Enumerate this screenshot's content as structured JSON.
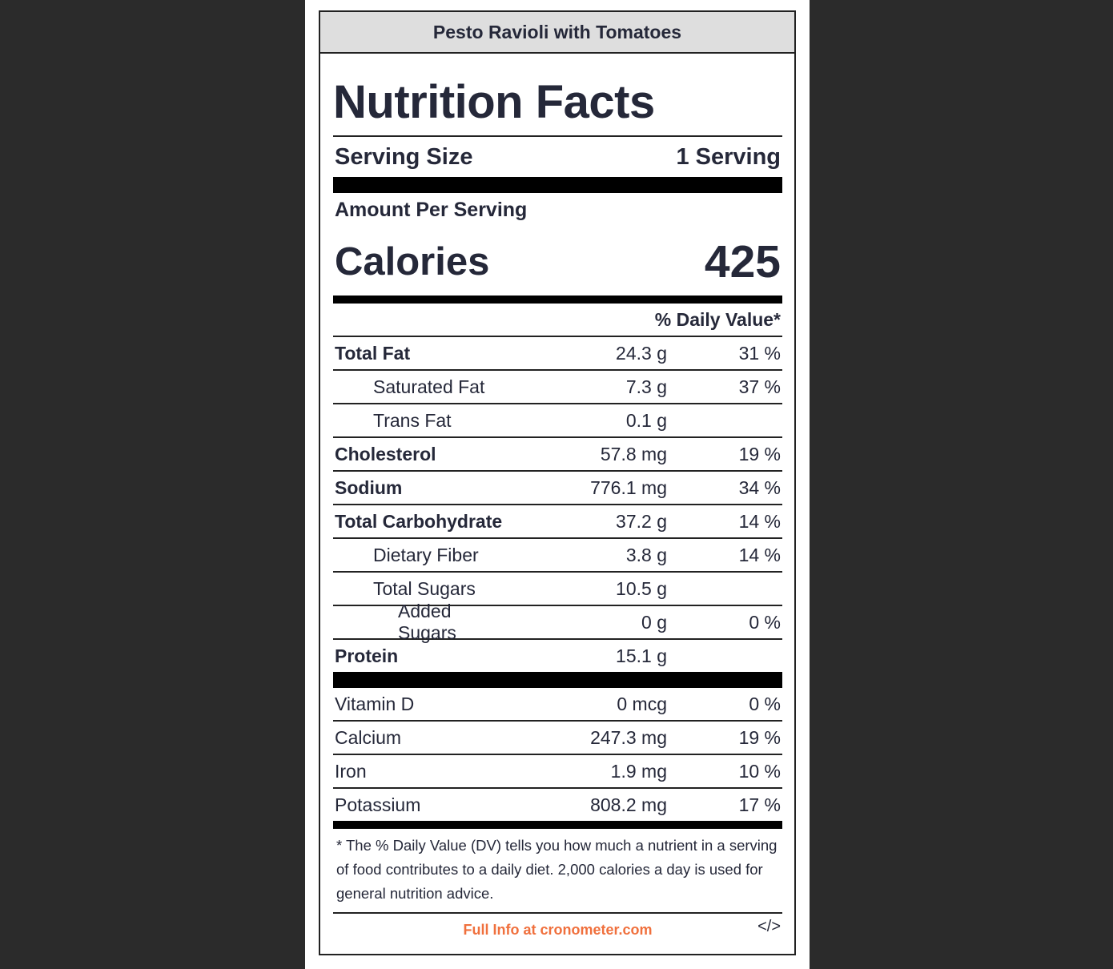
{
  "recipe_title": "Pesto Ravioli with Tomatoes",
  "heading": "Nutrition Facts",
  "serving": {
    "label": "Serving Size",
    "value": "1 Serving"
  },
  "amount_per_serving": "Amount Per Serving",
  "calories": {
    "label": "Calories",
    "value": "425"
  },
  "daily_value_header": "% Daily Value*",
  "nutrients": [
    {
      "name": "Total Fat",
      "amount": "24.3 g",
      "dv": "31 %"
    },
    {
      "name": "Saturated Fat",
      "amount": "7.3 g",
      "dv": "37 %"
    },
    {
      "name": "Trans Fat",
      "amount": "0.1 g",
      "dv": ""
    },
    {
      "name": "Cholesterol",
      "amount": "57.8 mg",
      "dv": "19 %"
    },
    {
      "name": "Sodium",
      "amount": "776.1 mg",
      "dv": "34 %"
    },
    {
      "name": "Total Carbohydrate",
      "amount": "37.2 g",
      "dv": "14 %"
    },
    {
      "name": "Dietary Fiber",
      "amount": "3.8 g",
      "dv": "14 %"
    },
    {
      "name": "Total Sugars",
      "amount": "10.5 g",
      "dv": ""
    },
    {
      "name": "Added Sugars",
      "amount": "0 g",
      "dv": "0 %"
    },
    {
      "name": "Protein",
      "amount": "15.1 g",
      "dv": ""
    }
  ],
  "vitamins": [
    {
      "name": "Vitamin D",
      "amount": "0 mcg",
      "dv": "0 %"
    },
    {
      "name": "Calcium",
      "amount": "247.3 mg",
      "dv": "19 %"
    },
    {
      "name": "Iron",
      "amount": "1.9 mg",
      "dv": "10 %"
    },
    {
      "name": "Potassium",
      "amount": "808.2 mg",
      "dv": "17 %"
    }
  ],
  "footnote": "* The % Daily Value (DV) tells you how much a nutrient in a serving of food contributes to a daily diet. 2,000 calories a day is used for general nutrition advice.",
  "footer": {
    "link_text": "Full Info at cronometer.com",
    "embed_icon": "</>",
    "link_color": "#f0703d"
  }
}
